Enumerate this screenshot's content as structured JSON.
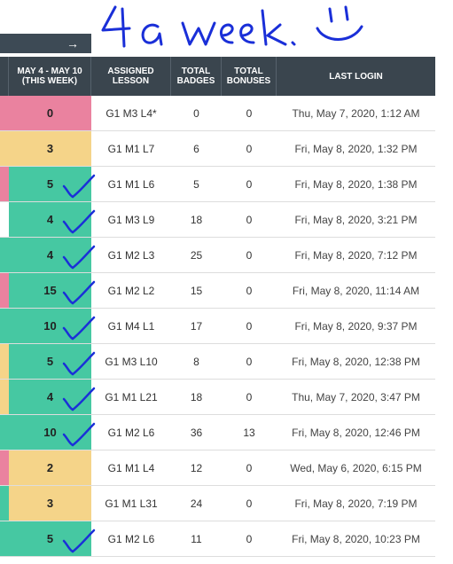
{
  "annotation": {
    "header_text": "4 a week",
    "smiley": "smiley-face"
  },
  "topbar": {
    "arrow": "→"
  },
  "columns": {
    "week": [
      "MAY 4 - MAY 10",
      "(THIS WEEK)"
    ],
    "lesson": [
      "ASSIGNED",
      "LESSON"
    ],
    "badges": [
      "TOTAL",
      "BADGES"
    ],
    "bonuses": [
      "TOTAL",
      "BONUSES"
    ],
    "login": [
      "LAST LOGIN"
    ]
  },
  "colors": {
    "pink": "#ea829f",
    "yellow": "#f5d489",
    "green": "#46c8a2",
    "ink": "#1a2fd8"
  },
  "rows": [
    {
      "strip": "pink",
      "week": "0",
      "week_color": "pink",
      "lesson": "G1 M3 L4*",
      "badges": "0",
      "bonuses": "0",
      "login": "Thu, May 7, 2020, 1:12 AM",
      "check": false
    },
    {
      "strip": "yellow",
      "week": "3",
      "week_color": "yellow",
      "lesson": "G1 M1 L7",
      "badges": "6",
      "bonuses": "0",
      "login": "Fri, May 8, 2020, 1:32 PM",
      "check": false
    },
    {
      "strip": "pink",
      "week": "5",
      "week_color": "green",
      "lesson": "G1 M1 L6",
      "badges": "5",
      "bonuses": "0",
      "login": "Fri, May 8, 2020, 1:38 PM",
      "check": true
    },
    {
      "strip": "white",
      "week": "4",
      "week_color": "green",
      "lesson": "G1 M3 L9",
      "badges": "18",
      "bonuses": "0",
      "login": "Fri, May 8, 2020, 3:21 PM",
      "check": true
    },
    {
      "strip": "green",
      "week": "4",
      "week_color": "green",
      "lesson": "G1 M2 L3",
      "badges": "25",
      "bonuses": "0",
      "login": "Fri, May 8, 2020, 7:12 PM",
      "check": true
    },
    {
      "strip": "pink",
      "week": "15",
      "week_color": "green",
      "lesson": "G1 M2 L2",
      "badges": "15",
      "bonuses": "0",
      "login": "Fri, May 8, 2020, 11:14 AM",
      "check": true
    },
    {
      "strip": "green",
      "week": "10",
      "week_color": "green",
      "lesson": "G1 M4 L1",
      "badges": "17",
      "bonuses": "0",
      "login": "Fri, May 8, 2020, 9:37 PM",
      "check": true
    },
    {
      "strip": "yellow",
      "week": "5",
      "week_color": "green",
      "lesson": "G1 M3 L10",
      "badges": "8",
      "bonuses": "0",
      "login": "Fri, May 8, 2020, 12:38 PM",
      "check": true
    },
    {
      "strip": "yellow",
      "week": "4",
      "week_color": "green",
      "lesson": "G1 M1 L21",
      "badges": "18",
      "bonuses": "0",
      "login": "Thu, May 7, 2020, 3:47 PM",
      "check": true
    },
    {
      "strip": "green",
      "week": "10",
      "week_color": "green",
      "lesson": "G1 M2 L6",
      "badges": "36",
      "bonuses": "13",
      "login": "Fri, May 8, 2020, 12:46 PM",
      "check": true
    },
    {
      "strip": "pink",
      "week": "2",
      "week_color": "yellow",
      "lesson": "G1 M1 L4",
      "badges": "12",
      "bonuses": "0",
      "login": "Wed, May 6, 2020, 6:15 PM",
      "check": false
    },
    {
      "strip": "green",
      "week": "3",
      "week_color": "yellow",
      "lesson": "G1 M1 L31",
      "badges": "24",
      "bonuses": "0",
      "login": "Fri, May 8, 2020, 7:19 PM",
      "check": false
    },
    {
      "strip": "green",
      "week": "5",
      "week_color": "green",
      "lesson": "G1 M2 L6",
      "badges": "11",
      "bonuses": "0",
      "login": "Fri, May 8, 2020, 10:23 PM",
      "check": true
    }
  ]
}
